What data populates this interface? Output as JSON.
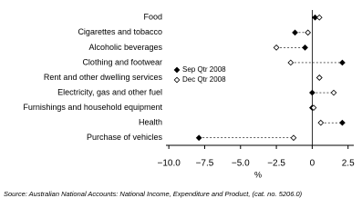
{
  "chart_data": {
    "type": "dot",
    "categories": [
      "Food",
      "Cigarettes and tobacco",
      "Alcoholic beverages",
      "Clothing and footwear",
      "Rent and other dwelling services",
      "Electricity, gas and other fuel",
      "Furnishings and household equipment",
      "Health",
      "Purchase of vehicles"
    ],
    "series": [
      {
        "name": "Sep Qtr 2008",
        "color": "#000000",
        "marker": "filled",
        "values": [
          0.2,
          -1.2,
          -0.5,
          2.1,
          0.5,
          0.0,
          0.0,
          2.1,
          -7.9
        ]
      },
      {
        "name": "Dec Qtr 2008",
        "color": "#000000",
        "marker": "open",
        "values": [
          0.5,
          -0.3,
          -2.5,
          -1.5,
          0.5,
          1.5,
          0.1,
          0.6,
          -1.3
        ]
      }
    ],
    "xlabel": "%",
    "xlim": [
      -10.2,
      2.9
    ],
    "xticks": [
      {
        "value": -10,
        "label": "−10.0"
      },
      {
        "value": -7.5,
        "label": "−7.5"
      },
      {
        "value": -5,
        "label": "−5.0"
      },
      {
        "value": -2.5,
        "label": "−2.5"
      },
      0,
      2.5
    ],
    "legend": "center",
    "source": "Source: Australian National Accounts: National Income, Expenditure and Product, (cat. no. 5206.0)"
  }
}
